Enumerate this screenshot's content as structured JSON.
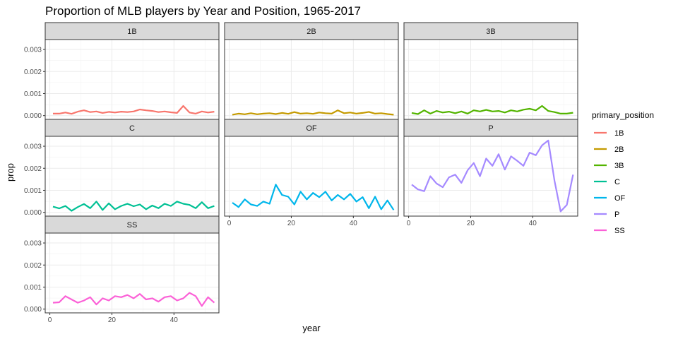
{
  "chart_data": {
    "type": "line",
    "title": "Proportion of MLB players by Year and Position, 1965-2017",
    "xlabel": "year",
    "ylabel": "prop",
    "xlim": [
      -1.5,
      54.5
    ],
    "ylim": [
      -0.00017,
      0.00345
    ],
    "x_ticks": [
      0,
      20,
      40
    ],
    "y_ticks": [
      0,
      0.001,
      0.002,
      0.003
    ],
    "y_tick_labels": [
      "0.000",
      "0.001",
      "0.002",
      "0.003"
    ],
    "grid": true,
    "legend": {
      "title": "primary_position",
      "placement": "right"
    },
    "panels": [
      {
        "name": "1B",
        "color": "#F8766D",
        "x": [
          1,
          3,
          5,
          7,
          9,
          11,
          13,
          15,
          17,
          19,
          21,
          23,
          25,
          27,
          29,
          31,
          33,
          35,
          37,
          39,
          41,
          43,
          45,
          47,
          49,
          51,
          53
        ],
        "values": [
          9e-05,
          9e-05,
          0.00014,
          8e-05,
          0.00018,
          0.00024,
          0.00016,
          0.00019,
          0.00012,
          0.00017,
          0.00014,
          0.00018,
          0.00016,
          0.00019,
          0.00028,
          0.00024,
          0.00021,
          0.00016,
          0.00019,
          0.00015,
          0.00012,
          0.00044,
          0.00014,
          9e-05,
          0.00019,
          0.00014,
          0.00018
        ]
      },
      {
        "name": "2B",
        "color": "#C49A00",
        "x": [
          1,
          3,
          5,
          7,
          9,
          11,
          13,
          15,
          17,
          19,
          21,
          23,
          25,
          27,
          29,
          31,
          33,
          35,
          37,
          39,
          41,
          43,
          45,
          47,
          49,
          51,
          53
        ],
        "values": [
          4e-05,
          9e-05,
          6e-05,
          0.00011,
          6e-05,
          9e-05,
          0.00011,
          7e-05,
          0.00012,
          8e-05,
          0.00016,
          9e-05,
          0.00011,
          8e-05,
          0.00014,
          0.00011,
          9e-05,
          0.00024,
          0.00011,
          0.00014,
          9e-05,
          0.00012,
          0.00017,
          9e-05,
          0.00011,
          7e-05,
          4e-05
        ]
      },
      {
        "name": "3B",
        "color": "#53B400",
        "x": [
          1,
          3,
          5,
          7,
          9,
          11,
          13,
          15,
          17,
          19,
          21,
          23,
          25,
          27,
          29,
          31,
          33,
          35,
          37,
          39,
          41,
          43,
          45,
          47,
          49,
          51,
          53
        ],
        "values": [
          0.00012,
          7e-05,
          0.00024,
          9e-05,
          0.00021,
          0.00014,
          0.00018,
          0.00011,
          0.00019,
          9e-05,
          0.00024,
          0.00019,
          0.00026,
          0.00019,
          0.00021,
          0.00014,
          0.00024,
          0.00019,
          0.00027,
          0.00031,
          0.00024,
          0.00044,
          0.00021,
          0.00016,
          9e-05,
          9e-05,
          0.00013
        ]
      },
      {
        "name": "C",
        "color": "#00C094",
        "x": [
          1,
          3,
          5,
          7,
          9,
          11,
          13,
          15,
          17,
          19,
          21,
          23,
          25,
          27,
          29,
          31,
          33,
          35,
          37,
          39,
          41,
          43,
          45,
          47,
          49,
          51,
          53
        ],
        "values": [
          0.00026,
          0.00018,
          0.00029,
          7e-05,
          0.00024,
          0.00038,
          0.00019,
          0.00049,
          0.00011,
          0.00041,
          0.00014,
          0.00029,
          0.00039,
          0.00028,
          0.00036,
          0.00014,
          0.00031,
          0.00019,
          0.00039,
          0.00029,
          0.00049,
          0.00039,
          0.00034,
          0.00019,
          0.00046,
          0.00019,
          0.00029
        ]
      },
      {
        "name": "OF",
        "color": "#00B6EB",
        "x": [
          1,
          3,
          5,
          7,
          9,
          11,
          13,
          15,
          17,
          19,
          21,
          23,
          25,
          27,
          29,
          31,
          33,
          35,
          37,
          39,
          41,
          43,
          45,
          47,
          49,
          51,
          53
        ],
        "values": [
          0.00044,
          0.00024,
          0.00059,
          0.00036,
          0.00029,
          0.00049,
          0.00039,
          0.00126,
          0.00079,
          0.00071,
          0.00036,
          0.00094,
          0.00059,
          0.00088,
          0.00069,
          0.00094,
          0.00054,
          0.00079,
          0.00059,
          0.00084,
          0.00049,
          0.00069,
          0.00019,
          0.00071,
          0.00014,
          0.00054,
          0.00011
        ]
      },
      {
        "name": "P",
        "color": "#A58AFF",
        "x": [
          1,
          3,
          5,
          7,
          9,
          11,
          13,
          15,
          17,
          19,
          21,
          23,
          25,
          27,
          29,
          31,
          33,
          35,
          37,
          39,
          41,
          43,
          45,
          47,
          49,
          51,
          53
        ],
        "values": [
          0.00126,
          0.00104,
          0.00096,
          0.00164,
          0.00131,
          0.00114,
          0.00159,
          0.00171,
          0.00134,
          0.00191,
          0.00224,
          0.00164,
          0.00244,
          0.00211,
          0.00264,
          0.00194,
          0.00254,
          0.00234,
          0.00211,
          0.00271,
          0.00259,
          0.00304,
          0.00326,
          0.00144,
          4e-05,
          0.00034,
          0.00171
        ]
      },
      {
        "name": "SS",
        "color": "#FB61D7",
        "x": [
          1,
          3,
          5,
          7,
          9,
          11,
          13,
          15,
          17,
          19,
          21,
          23,
          25,
          27,
          29,
          31,
          33,
          35,
          37,
          39,
          41,
          43,
          45,
          47,
          49,
          51,
          53
        ],
        "values": [
          0.00029,
          0.00031,
          0.00059,
          0.00044,
          0.00029,
          0.00039,
          0.00054,
          0.00021,
          0.00049,
          0.00039,
          0.00059,
          0.00054,
          0.00064,
          0.00049,
          0.00069,
          0.00044,
          0.00049,
          0.00034,
          0.00054,
          0.00059,
          0.00039,
          0.00049,
          0.00074,
          0.00059,
          0.00014,
          0.00054,
          0.00029
        ]
      }
    ]
  }
}
